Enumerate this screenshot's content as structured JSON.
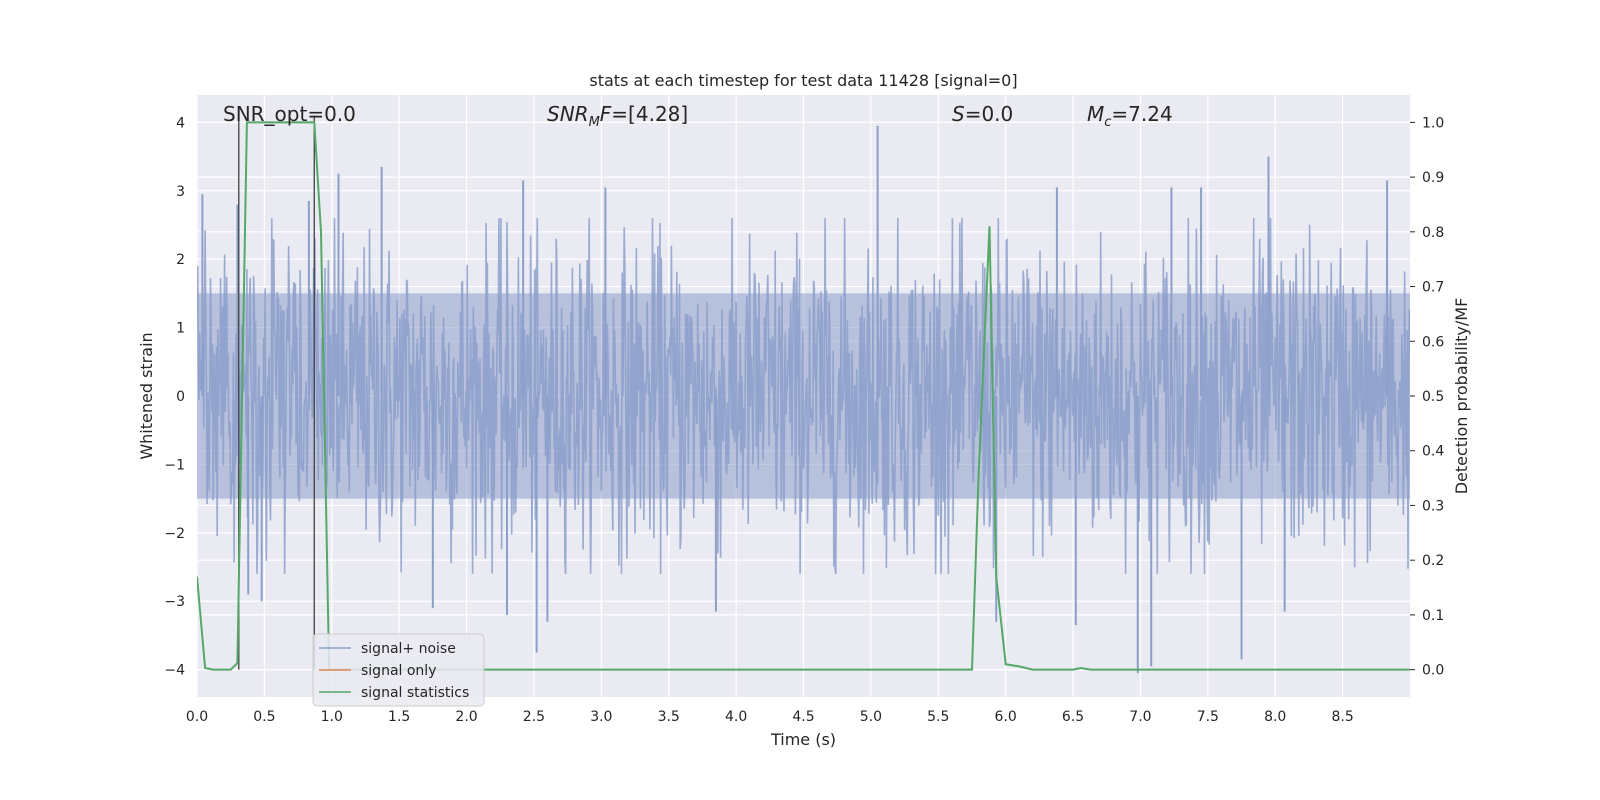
{
  "chart_data": {
    "type": "line",
    "title": "stats at each timestep for test data 11428 [signal=0]",
    "xlabel": "Time (s)",
    "ylabel": "Whitened strain",
    "ylabel_right": "Detection probability/MF",
    "xlim": [
      0.0,
      9.0
    ],
    "ylim": [
      -4.4,
      4.4
    ],
    "ylim_right": [
      -0.05,
      1.05
    ],
    "x_ticks": [
      "0.0",
      "0.5",
      "1.0",
      "1.5",
      "2.0",
      "2.5",
      "3.0",
      "3.5",
      "4.0",
      "4.5",
      "5.0",
      "5.5",
      "6.0",
      "6.5",
      "7.0",
      "7.5",
      "8.0",
      "8.5"
    ],
    "y_ticks": [
      "4",
      "3",
      "2",
      "1",
      "0",
      "−1",
      "−2",
      "−3",
      "−4"
    ],
    "y_right_ticks": [
      "1.0",
      "0.9",
      "0.8",
      "0.7",
      "0.6",
      "0.5",
      "0.4",
      "0.3",
      "0.2",
      "0.1",
      "0.0"
    ],
    "grid": true,
    "legend_position": "lower-left",
    "annotations": {
      "snr_opt": "SNR_opt=0.0",
      "snr_mf": "=[4.28]",
      "s_value": "=0.0",
      "mc_value": "=7.24"
    },
    "vertical_markers_x": [
      0.31,
      0.87
    ],
    "series": [
      {
        "name": "signal+ noise",
        "color": "#8c9fcb",
        "axis": "left",
        "kind": "noise",
        "envelope": 1.5,
        "peaks": [
          [
            0.04,
            2.95
          ],
          [
            0.3,
            2.8
          ],
          [
            0.83,
            2.85
          ],
          [
            1.05,
            3.25
          ],
          [
            1.37,
            3.35
          ],
          [
            2.42,
            3.15
          ],
          [
            3.03,
            3.05
          ],
          [
            5.05,
            3.95
          ],
          [
            6.38,
            3.05
          ],
          [
            7.23,
            3.05
          ],
          [
            7.45,
            3.05
          ],
          [
            7.95,
            3.5
          ],
          [
            8.83,
            3.15
          ],
          [
            0.38,
            -2.9
          ],
          [
            0.48,
            -3.0
          ],
          [
            1.75,
            -3.1
          ],
          [
            2.3,
            -3.2
          ],
          [
            2.52,
            -3.75
          ],
          [
            2.6,
            -3.3
          ],
          [
            3.85,
            -3.15
          ],
          [
            5.93,
            -3.3
          ],
          [
            6.52,
            -3.35
          ],
          [
            6.98,
            -4.05
          ],
          [
            7.08,
            -3.95
          ],
          [
            7.75,
            -3.85
          ],
          [
            8.07,
            -3.15
          ]
        ]
      },
      {
        "name": "signal only",
        "color": "#dd8452",
        "axis": "left",
        "x": [],
        "y": []
      },
      {
        "name": "signal statistics",
        "color": "#55a868",
        "axis": "right",
        "x": [
          0.0,
          0.06,
          0.12,
          0.25,
          0.3,
          0.37,
          0.5,
          0.87,
          0.92,
          0.98,
          1.02,
          2.0,
          5.0,
          5.75,
          5.8,
          5.88,
          5.93,
          6.0,
          6.1,
          6.2,
          6.5,
          6.56,
          6.63,
          7.0,
          8.0,
          9.0
        ],
        "y": [
          0.17,
          0.003,
          0.0,
          0.0,
          0.012,
          1.0,
          1.0,
          1.0,
          0.8,
          0.0,
          0.0,
          0.0,
          0.0,
          0.0,
          0.36,
          0.81,
          0.17,
          0.01,
          0.006,
          0.0,
          0.0,
          0.003,
          0.0,
          0.0,
          0.0,
          0.0
        ]
      }
    ]
  }
}
